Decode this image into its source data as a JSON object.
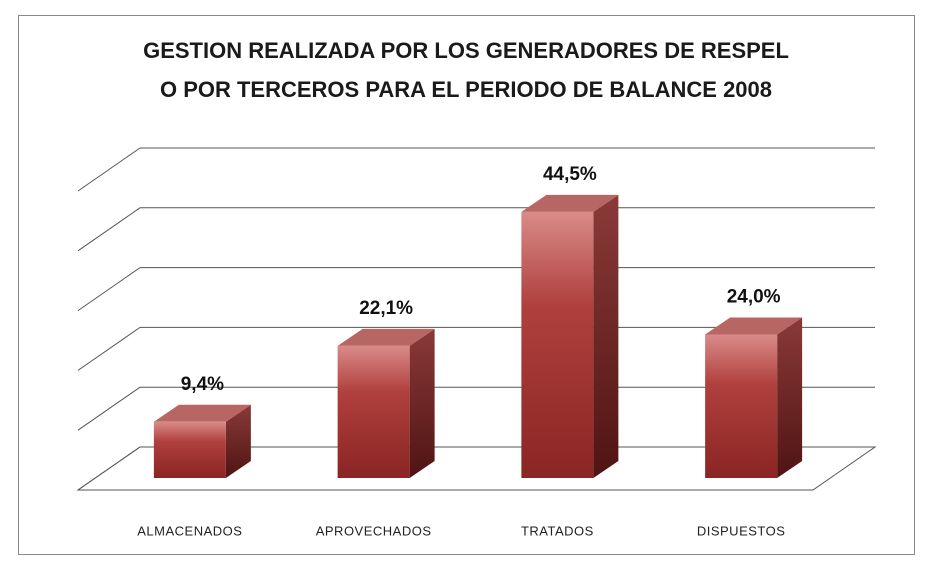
{
  "chart_data": {
    "type": "bar3d",
    "title": "GESTION REALIZADA POR LOS GENERADORES DE RESPEL",
    "subtitle": "O POR TERCEROS PARA EL PERIODO DE BALANCE 2008",
    "categories": [
      "ALMACENADOS",
      "APROVECHADOS",
      "TRATADOS",
      "DISPUESTOS"
    ],
    "values": [
      9.4,
      22.1,
      44.5,
      24.0
    ],
    "value_labels": [
      "9,4%",
      "22,1%",
      "44,5%",
      "24,0%"
    ],
    "color": "#a33533",
    "ylim": [
      0,
      50
    ],
    "yticks": [
      0,
      10,
      20,
      30,
      40,
      50
    ],
    "grid": true
  }
}
